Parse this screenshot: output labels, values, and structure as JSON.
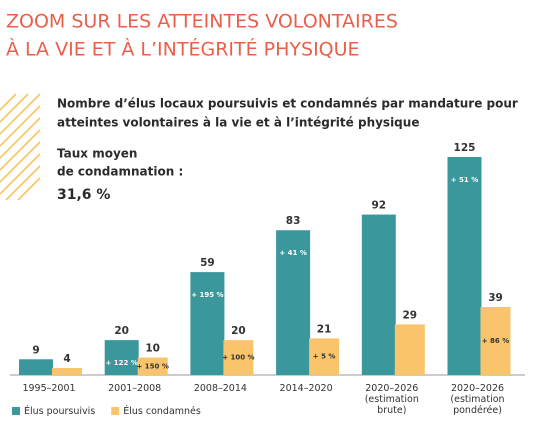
{
  "header": {
    "title_lines": [
      "ZOOM SUR LES ATTEINTES VOLONTAIRES",
      "À LA VIE ET À L’INTÉGRITÉ PHYSIQUE"
    ]
  },
  "chart_data": {
    "type": "bar",
    "title_lines": [
      "Nombre d’élus locaux poursuivis et condamnés par mandature pour",
      "atteintes volontaires à la vie et à l’intégrité physique"
    ],
    "annotation_lines": [
      "Taux moyen",
      "de condamnation :",
      "31,6 %"
    ],
    "categories": [
      "1995–2001",
      "2001–2008",
      "2008–2014",
      "2014–2020",
      "2020–2026\n(estimation\nbrute)",
      "2020–2026\n(estimation\npondérée)"
    ],
    "series": [
      {
        "name": "Élus poursuivis",
        "color": "#3a979c",
        "values": [
          9,
          20,
          59,
          83,
          92,
          125
        ],
        "growth_labels": [
          null,
          "+ 122 %",
          "+ 195 %",
          "+ 41 %",
          null,
          "+ 51 %"
        ]
      },
      {
        "name": "Élus condamnés",
        "color": "#f9c46b",
        "values": [
          4,
          10,
          20,
          21,
          29,
          39
        ],
        "growth_labels": [
          null,
          "+ 150 %",
          "+ 100 %",
          "+ 5 %",
          null,
          "+ 86 %"
        ]
      }
    ]
  }
}
